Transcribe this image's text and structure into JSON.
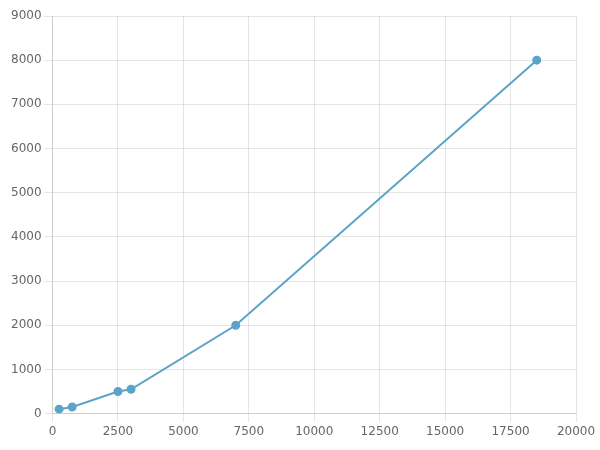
{
  "chart_data": {
    "type": "line",
    "x": [
      250,
      750,
      2500,
      3000,
      7000,
      18500
    ],
    "values": [
      100,
      150,
      500,
      550,
      2000,
      8000
    ],
    "color": "#5BA3C9",
    "marker": "circle",
    "xlim": [
      0,
      20000
    ],
    "ylim": [
      0,
      9000
    ],
    "xticks": [
      0,
      2500,
      5000,
      7500,
      10000,
      12500,
      15000,
      17500,
      20000
    ],
    "yticks": [
      0,
      1000,
      2000,
      3000,
      4000,
      5000,
      6000,
      7000,
      8000,
      9000
    ],
    "grid": true
  }
}
